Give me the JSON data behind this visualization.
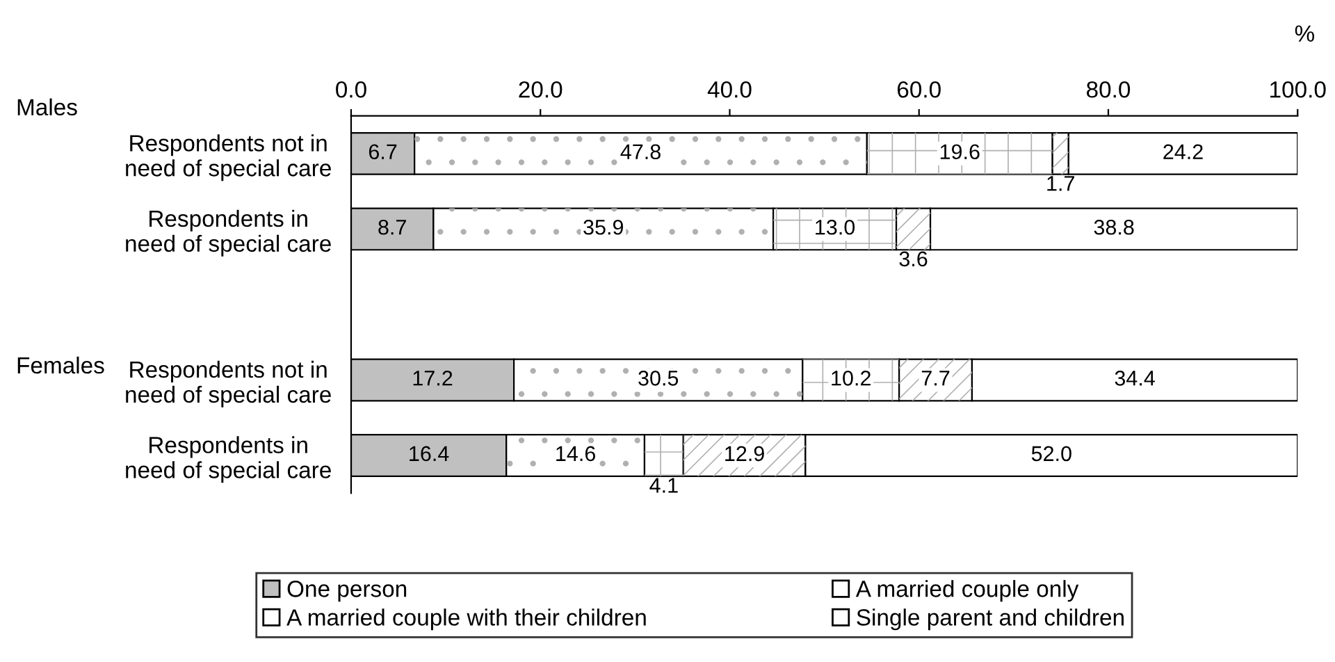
{
  "chart_data": {
    "type": "bar",
    "orientation": "horizontal",
    "stacked": true,
    "xlabel": "%",
    "categories": [
      "Respondents not in\nneed of special care",
      "Respondents in\nneed of special care",
      null,
      "Respondents not in\nneed of special care",
      "Respondents in\nneed of special care"
    ],
    "series": [
      {
        "name": "One person",
        "color": "#c0c0c0",
        "values": [
          6.7,
          8.7,
          null,
          17.2,
          16.4
        ],
        "value_labels": [
          "6.7",
          "8.7",
          null,
          "17.2",
          "16.4"
        ]
      },
      {
        "name": "A married couple only",
        "color": "#ffffff",
        "values": [
          47.8,
          35.9,
          null,
          30.5,
          14.6
        ],
        "value_labels": [
          "47.8",
          "35.9",
          null,
          "30.5",
          "14.6"
        ]
      },
      {
        "name": "A married couple with their children",
        "color": "#ffffff",
        "values": [
          19.6,
          13.0,
          null,
          10.2,
          4.1
        ],
        "value_labels": [
          "19.6",
          "13.0",
          null,
          "10.2",
          "4.1"
        ]
      },
      {
        "name": "Single parent and children",
        "color": "#ffffff",
        "values": [
          1.7,
          3.6,
          null,
          7.7,
          12.9
        ],
        "value_labels": [
          "1.7",
          "3.6",
          null,
          "7.7",
          "12.9"
        ]
      },
      {
        "color": "#ffffff",
        "values": [
          24.2,
          38.8,
          null,
          34.4,
          52.0
        ],
        "value_labels": [
          "24.2",
          "38.8",
          null,
          "34.4",
          "52.0"
        ]
      }
    ],
    "xlim": [
      0,
      100
    ],
    "xticks": [
      {
        "value": 0,
        "label": "0.0"
      },
      {
        "value": 20,
        "label": "20.0"
      },
      {
        "value": 40,
        "label": "40.0"
      },
      {
        "value": 60,
        "label": "60.0"
      },
      {
        "value": 80,
        "label": "80.0"
      },
      {
        "value": 100,
        "label": "100.0"
      }
    ],
    "annotations": [
      "Males",
      "Females"
    ],
    "legend": "bottom",
    "grid": false
  }
}
